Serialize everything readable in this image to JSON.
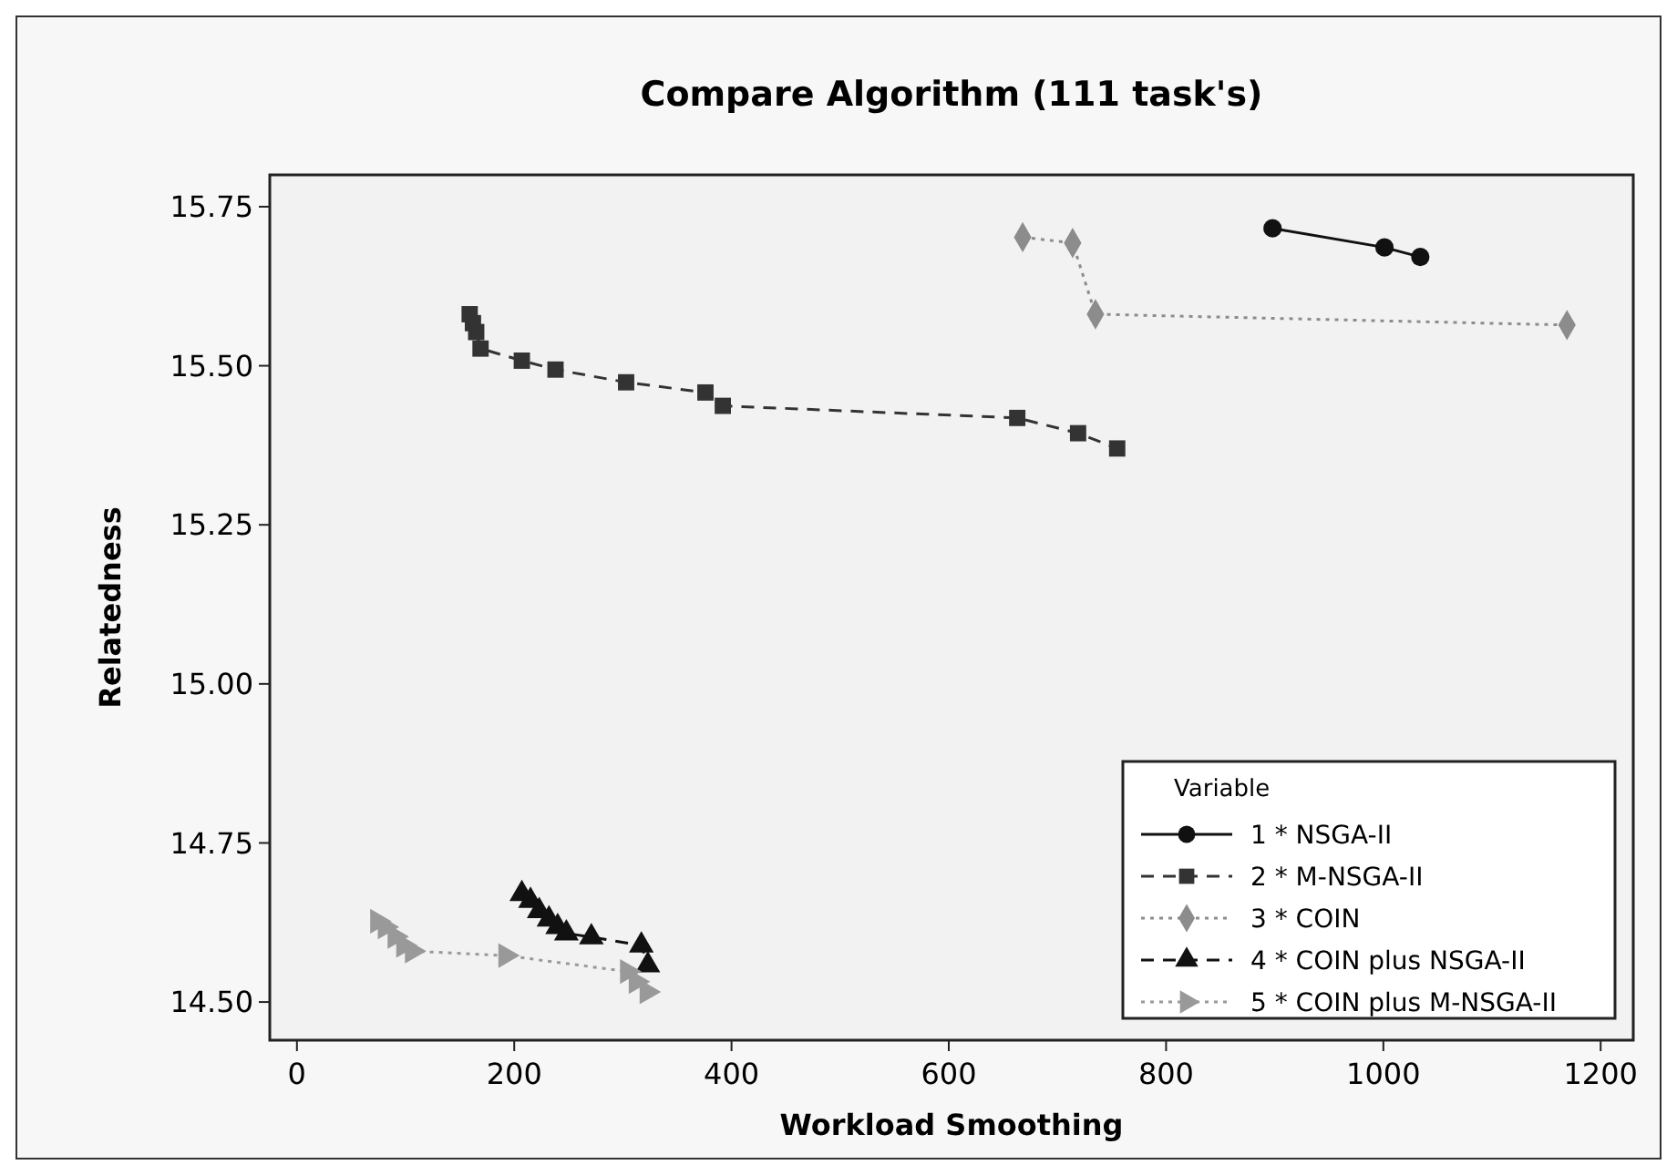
{
  "chart_data": {
    "type": "line",
    "title": "Compare Algorithm (111 task's)",
    "xlabel": "Workload Smoothing",
    "ylabel": "Relatedness",
    "legend_title": "Variable",
    "legend": "bottom right",
    "grid": false,
    "xlim": [
      -25,
      1230
    ],
    "xticks": [
      0,
      200,
      400,
      600,
      800,
      1000,
      1200
    ],
    "ylim": [
      14.44,
      15.8
    ],
    "yticks": [
      {
        "value": 14.5,
        "label": "14.50"
      },
      {
        "value": 14.75,
        "label": "14.75"
      },
      {
        "value": 15,
        "label": "15.00"
      },
      {
        "value": 15.25,
        "label": "15.25"
      },
      {
        "value": 15.5,
        "label": "15.50"
      },
      {
        "value": 15.75,
        "label": "15.75"
      }
    ],
    "series": [
      {
        "name": "1 * NSGA-II",
        "color": "#111111",
        "marker": "circle",
        "line_style": "solid",
        "x": [
          898,
          1001,
          1034
        ],
        "values": [
          15.716,
          15.686,
          15.671
        ]
      },
      {
        "name": "2 * M-NSGA-II",
        "color": "#333333",
        "marker": "square",
        "line_style": "dashed",
        "x": [
          159,
          162,
          165,
          169,
          207,
          238,
          303,
          376,
          392,
          663,
          719,
          755
        ],
        "values": [
          15.581,
          15.567,
          15.553,
          15.527,
          15.508,
          15.494,
          15.474,
          15.458,
          15.437,
          15.418,
          15.394,
          15.37
        ]
      },
      {
        "name": "3 * COIN",
        "color": "#8c8c8c",
        "marker": "diamond",
        "line_style": "dotted",
        "x": [
          668,
          714,
          735,
          1169
        ],
        "values": [
          15.702,
          15.693,
          15.581,
          15.564
        ]
      },
      {
        "name": "4 * COIN plus NSGA-II",
        "color": "#111111",
        "marker": "triangle",
        "line_style": "dashed",
        "x": [
          207,
          215,
          223,
          232,
          240,
          248,
          271,
          317,
          323
        ],
        "values": [
          14.67,
          14.659,
          14.643,
          14.63,
          14.618,
          14.608,
          14.602,
          14.589,
          14.558
        ]
      },
      {
        "name": "5 * COIN plus M-NSGA-II",
        "color": "#999999",
        "marker": "triangle-right",
        "line_style": "dotted",
        "x": [
          74,
          81,
          90,
          98,
          106,
          192,
          304,
          312,
          322
        ],
        "values": [
          14.627,
          14.618,
          14.603,
          14.589,
          14.58,
          14.573,
          14.548,
          14.532,
          14.516
        ]
      }
    ]
  }
}
